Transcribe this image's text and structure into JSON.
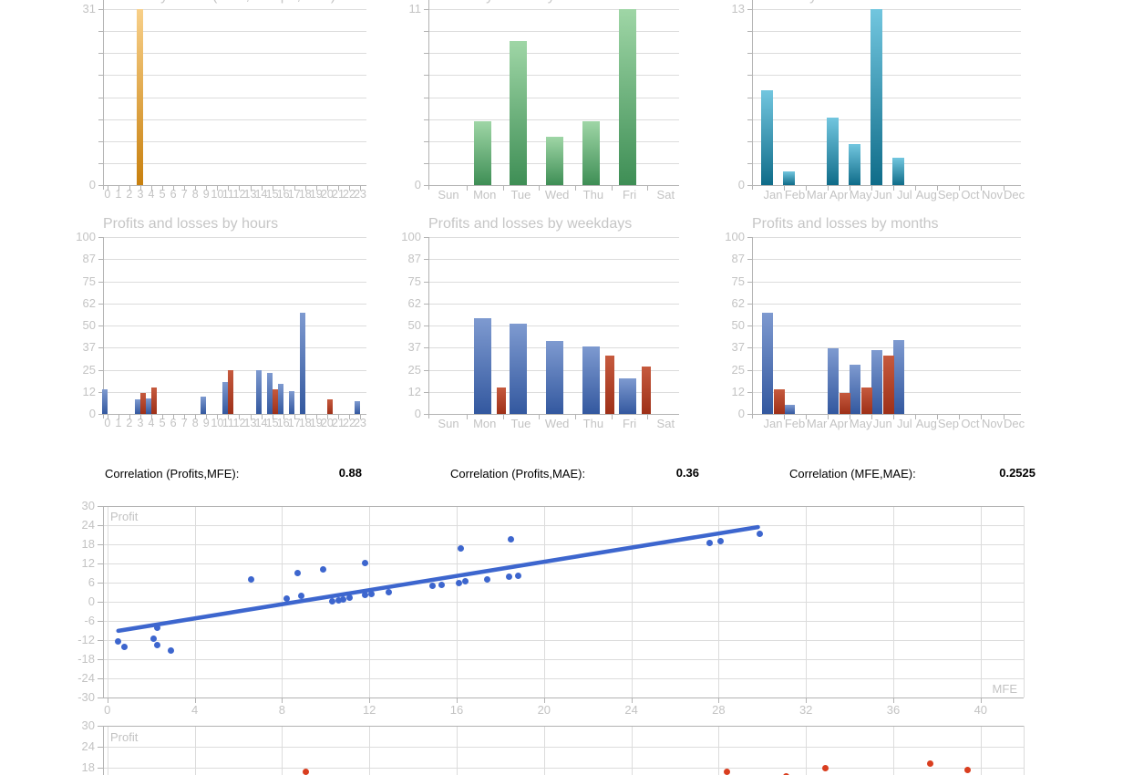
{
  "colors": {
    "title_gray": "#C6C6C6",
    "tick_gray": "#C3C3C3",
    "grid": "#DCDCDC",
    "axis": "#B3B3B3",
    "orange_top": "#F8D089",
    "orange_bottom": "#C8800E",
    "green_top": "#9FD6A6",
    "green_bottom": "#3E8E55",
    "teal_top": "#72C6DF",
    "teal_bottom": "#0F6C89",
    "blue_top": "#7E9AD0",
    "blue_bottom": "#33589F",
    "red_top": "#C65A3E",
    "red_bottom": "#9E3018",
    "scatter_blue": "#3D66CE",
    "scatter_red": "#D93E1F",
    "text_black": "#000000"
  },
  "correlations": [
    {
      "label": "Correlation (Profits,MFE):",
      "value": "0.88"
    },
    {
      "label": "Correlation (Profits,MAE):",
      "value": "0.36"
    },
    {
      "label": "Correlation (MFE,MAE):",
      "value": "0.2525"
    }
  ],
  "chart_data": [
    {
      "id": "entries-by-hours",
      "type": "bar",
      "title": "Entries by hours (Asia,Europe,USA)",
      "categories": [
        "0",
        "1",
        "2",
        "3",
        "4",
        "5",
        "6",
        "7",
        "8",
        "9",
        "10",
        "11",
        "12",
        "13",
        "14",
        "15",
        "16",
        "17",
        "18",
        "19",
        "20",
        "21",
        "22",
        "23"
      ],
      "values": [
        0,
        0,
        0,
        31,
        0,
        0,
        0,
        0,
        0,
        0,
        0,
        0,
        0,
        0,
        0,
        0,
        0,
        0,
        0,
        0,
        0,
        0,
        0,
        0
      ],
      "ymax": 31,
      "ytick_top": "31",
      "ytick_bottom": "0",
      "palette": "orange"
    },
    {
      "id": "entries-by-weekdays",
      "type": "bar",
      "title": "Entries by weekdays",
      "categories": [
        "Sun",
        "Mon",
        "Tue",
        "Wed",
        "Thu",
        "Fri",
        "Sat"
      ],
      "values": [
        0,
        4,
        9,
        3,
        4,
        11,
        0
      ],
      "ymax": 11,
      "ytick_top": "11",
      "ytick_bottom": "0",
      "palette": "green"
    },
    {
      "id": "entries-by-months",
      "type": "bar",
      "title": "Entries by months",
      "categories": [
        "Jan",
        "Feb",
        "Mar",
        "Apr",
        "May",
        "Jun",
        "Jul",
        "Aug",
        "Sep",
        "Oct",
        "Nov",
        "Dec"
      ],
      "values": [
        7,
        1,
        0,
        5,
        3,
        13,
        2,
        0,
        0,
        0,
        0,
        0
      ],
      "ymax": 13,
      "ytick_top": "13",
      "ytick_bottom": "0",
      "palette": "teal"
    },
    {
      "id": "pnl-by-hours",
      "type": "bar",
      "title": "Profits and losses by hours",
      "categories": [
        "0",
        "1",
        "2",
        "3",
        "4",
        "5",
        "6",
        "7",
        "8",
        "9",
        "10",
        "11",
        "12",
        "13",
        "14",
        "15",
        "16",
        "17",
        "18",
        "19",
        "20",
        "21",
        "22",
        "23"
      ],
      "series": [
        {
          "name": "profits",
          "palette": "blue",
          "values": [
            14,
            0,
            0,
            8,
            9,
            0,
            0,
            0,
            0,
            10,
            0,
            18,
            0,
            0,
            25,
            23,
            17,
            13,
            57,
            0,
            0,
            0,
            0,
            7
          ]
        },
        {
          "name": "losses",
          "palette": "red",
          "values": [
            0,
            0,
            0,
            12,
            15,
            0,
            0,
            0,
            0,
            0,
            0,
            25,
            0,
            0,
            0,
            14,
            0,
            0,
            0,
            0,
            8,
            0,
            0,
            0
          ]
        }
      ],
      "ymax": 100,
      "yticks": [
        "100",
        "87",
        "75",
        "62",
        "50",
        "37",
        "25",
        "12",
        "0"
      ]
    },
    {
      "id": "pnl-by-weekdays",
      "type": "bar",
      "title": "Profits and losses by weekdays",
      "categories": [
        "Sun",
        "Mon",
        "Tue",
        "Wed",
        "Thu",
        "Fri",
        "Sat"
      ],
      "series": [
        {
          "name": "profits",
          "palette": "blue",
          "values": [
            0,
            54,
            51,
            41,
            38,
            20,
            0
          ]
        },
        {
          "name": "losses",
          "palette": "red",
          "values": [
            0,
            15,
            0,
            0,
            33,
            27,
            0
          ]
        }
      ],
      "ymax": 100,
      "yticks": [
        "100",
        "87",
        "75",
        "62",
        "50",
        "37",
        "25",
        "12",
        "0"
      ]
    },
    {
      "id": "pnl-by-months",
      "type": "bar",
      "title": "Profits and losses by months",
      "categories": [
        "Jan",
        "Feb",
        "Mar",
        "Apr",
        "May",
        "Jun",
        "Jul",
        "Aug",
        "Sep",
        "Oct",
        "Nov",
        "Dec"
      ],
      "series": [
        {
          "name": "profits",
          "palette": "blue",
          "values": [
            57,
            5,
            0,
            37,
            28,
            36,
            42,
            0,
            0,
            0,
            0,
            0
          ]
        },
        {
          "name": "losses",
          "palette": "red",
          "values": [
            14,
            0,
            0,
            12,
            15,
            33,
            0,
            0,
            0,
            0,
            0,
            0
          ]
        }
      ],
      "ymax": 100,
      "yticks": [
        "100",
        "87",
        "75",
        "62",
        "50",
        "37",
        "25",
        "12",
        "0"
      ]
    },
    {
      "id": "profit-vs-mfe",
      "type": "scatter",
      "inner_label": "Profit",
      "axis_label": "MFE",
      "xticks": [
        0,
        4,
        8,
        12,
        16,
        20,
        24,
        28,
        32,
        36,
        40
      ],
      "yticks": [
        30,
        24,
        18,
        12,
        6,
        0,
        -6,
        -12,
        -18,
        -24,
        -30
      ],
      "xlim": [
        0,
        42
      ],
      "ylim": [
        -30,
        30
      ],
      "points": [
        [
          0.5,
          -12.5
        ],
        [
          0.8,
          -14.0
        ],
        [
          2.1,
          -11.6
        ],
        [
          2.3,
          -8.1
        ],
        [
          2.3,
          -13.5
        ],
        [
          2.9,
          -15.2
        ],
        [
          6.6,
          6.9
        ],
        [
          8.2,
          1.1
        ],
        [
          8.7,
          9.1
        ],
        [
          8.9,
          1.9
        ],
        [
          9.9,
          10.2
        ],
        [
          10.3,
          0.2
        ],
        [
          10.6,
          0.4
        ],
        [
          10.8,
          0.6
        ],
        [
          11.1,
          1.2
        ],
        [
          11.8,
          12.2
        ],
        [
          11.8,
          2.1
        ],
        [
          12.1,
          2.3
        ],
        [
          12.9,
          3.0
        ],
        [
          14.9,
          4.9
        ],
        [
          15.3,
          5.4
        ],
        [
          16.1,
          6.0
        ],
        [
          16.2,
          16.8
        ],
        [
          16.4,
          6.5
        ],
        [
          17.4,
          6.9
        ],
        [
          18.4,
          7.9
        ],
        [
          18.5,
          19.6
        ],
        [
          18.8,
          8.2
        ],
        [
          27.6,
          18.5
        ],
        [
          28.1,
          19.1
        ],
        [
          29.9,
          21.4
        ]
      ],
      "trend": {
        "x1": 0.5,
        "y1": -9.1,
        "x2": 29.8,
        "y2": 23.4
      },
      "point_color_key": "scatter_blue"
    },
    {
      "id": "profit-vs-mae",
      "type": "scatter",
      "inner_label": "Profit",
      "yticks": [
        30,
        24,
        18
      ],
      "xlim": [
        0,
        42
      ],
      "ylim": [
        -30,
        30
      ],
      "points": [
        [
          9.1,
          16.9
        ],
        [
          28.4,
          16.9
        ],
        [
          31.1,
          15.4
        ],
        [
          32.9,
          17.9
        ],
        [
          37.7,
          19.3
        ],
        [
          39.4,
          17.4
        ]
      ],
      "point_color_key": "scatter_red"
    }
  ]
}
